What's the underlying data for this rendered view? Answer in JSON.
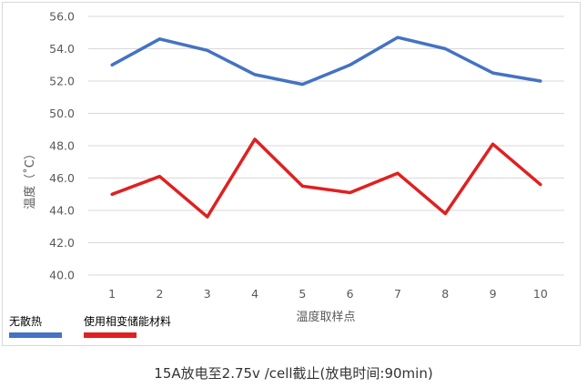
{
  "chart_data": {
    "type": "line",
    "categories": [
      "1",
      "2",
      "3",
      "4",
      "5",
      "6",
      "7",
      "8",
      "9",
      "10"
    ],
    "series": [
      {
        "name": "无散热",
        "color": "#4472C4",
        "values": [
          53.0,
          54.6,
          53.9,
          52.4,
          51.8,
          53.0,
          54.7,
          54.0,
          52.5,
          52.0
        ]
      },
      {
        "name": "使用相变储能材料",
        "color": "#E02020",
        "values": [
          45.0,
          46.1,
          43.6,
          48.4,
          45.5,
          45.1,
          46.3,
          43.8,
          48.1,
          45.6
        ]
      }
    ],
    "yticks": [
      "40.0",
      "42.0",
      "44.0",
      "46.0",
      "48.0",
      "50.0",
      "52.0",
      "54.0",
      "56.0"
    ],
    "ylim": [
      40,
      56
    ],
    "ylabel": "温度（˚C）",
    "xlabel": "温度取样点",
    "grid": true,
    "legend_position": "bottom-left"
  },
  "caption": "15A放电至2.75v /cell截止(放电时间:90min)"
}
